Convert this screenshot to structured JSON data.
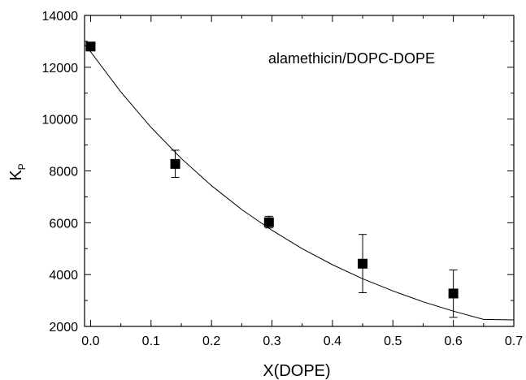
{
  "chart_data": {
    "type": "scatter",
    "title": "",
    "xlabel": "X(DOPE)",
    "ylabel_main": "K",
    "ylabel_sub": "P",
    "annotation": "alamethicin/DOPC-DOPE",
    "xlim": [
      -0.01,
      0.7
    ],
    "ylim": [
      2000,
      14000
    ],
    "x_ticks": [
      0.0,
      0.1,
      0.2,
      0.3,
      0.4,
      0.5,
      0.6,
      0.7
    ],
    "x_tick_labels": [
      "0.0",
      "0.1",
      "0.2",
      "0.3",
      "0.4",
      "0.5",
      "0.6",
      "0.7"
    ],
    "y_ticks": [
      2000,
      4000,
      6000,
      8000,
      10000,
      12000,
      14000
    ],
    "y_tick_labels": [
      "2000",
      "4000",
      "6000",
      "8000",
      "10000",
      "12000",
      "14000"
    ],
    "grid": false,
    "series": [
      {
        "marker": "square",
        "x": [
          0.0,
          0.14,
          0.295,
          0.45,
          0.6
        ],
        "y": [
          12800,
          8270,
          6020,
          4420,
          3270
        ],
        "err_low": [
          12800,
          7750,
          5800,
          3300,
          2350
        ],
        "err_high": [
          12800,
          8800,
          6250,
          5550,
          4180
        ]
      }
    ],
    "fit": {
      "type": "exponential",
      "x": [
        -0.01,
        0.0,
        0.05,
        0.1,
        0.15,
        0.2,
        0.25,
        0.3,
        0.35,
        0.4,
        0.45,
        0.5,
        0.55,
        0.6,
        0.65,
        0.7
      ],
      "y": [
        12870,
        12600,
        11050,
        9680,
        8480,
        7430,
        6510,
        5710,
        5000,
        4380,
        3840,
        3370,
        2950,
        2590,
        2270,
        2250
      ]
    }
  }
}
